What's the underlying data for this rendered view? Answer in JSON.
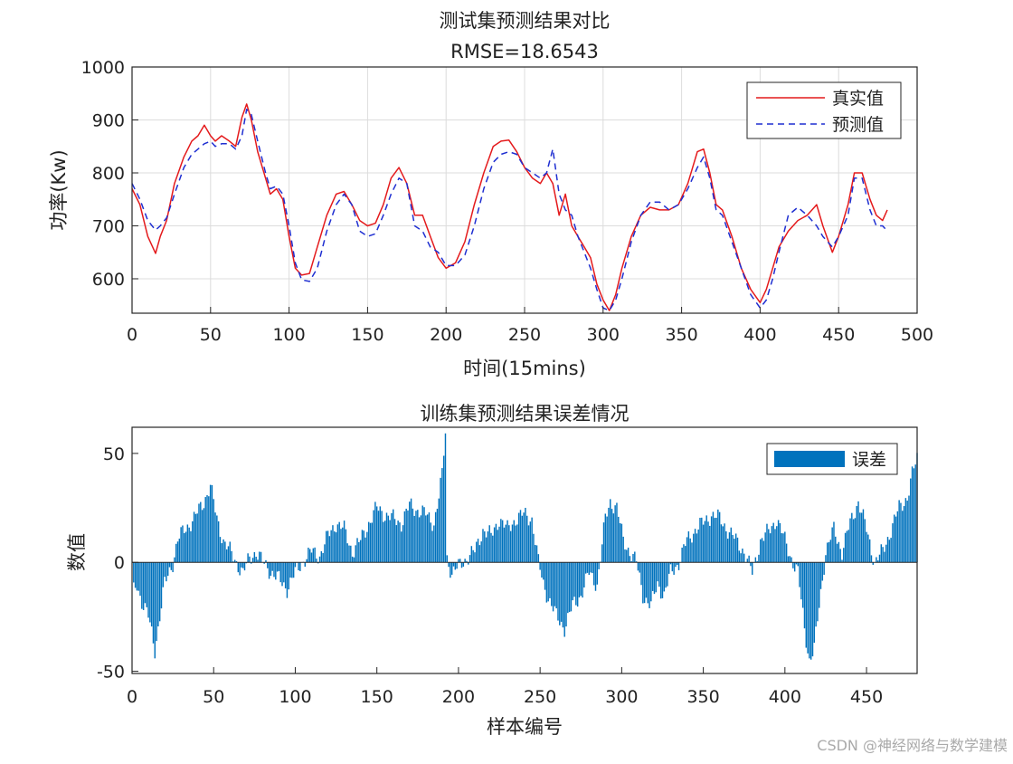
{
  "chart_data": [
    {
      "type": "line",
      "title": "测试集预测结果对比",
      "subtitle": "RMSE=18.6543",
      "xlabel": "时间(15mins)",
      "ylabel": "功率(Kw)",
      "xlim": [
        0,
        500
      ],
      "ylim": [
        535,
        1000
      ],
      "xticks": [
        0,
        50,
        100,
        150,
        200,
        250,
        300,
        350,
        400,
        450,
        500
      ],
      "yticks": [
        600,
        700,
        800,
        900,
        1000
      ],
      "grid": true,
      "legend_position": "top-right",
      "series": [
        {
          "name": "真实值",
          "color": "#e41a1c",
          "style": "solid",
          "x": [
            0,
            5,
            10,
            15,
            18,
            22,
            27,
            33,
            38,
            42,
            46,
            50,
            53,
            57,
            62,
            66,
            70,
            73,
            76,
            80,
            85,
            88,
            92,
            96,
            100,
            104,
            108,
            113,
            118,
            124,
            130,
            135,
            140,
            145,
            150,
            155,
            160,
            165,
            170,
            175,
            180,
            185,
            190,
            195,
            200,
            206,
            212,
            218,
            224,
            230,
            235,
            240,
            245,
            250,
            255,
            260,
            264,
            268,
            272,
            276,
            280,
            284,
            288,
            292,
            296,
            300,
            304,
            308,
            312,
            318,
            324,
            330,
            336,
            342,
            348,
            354,
            360,
            364,
            368,
            372,
            376,
            382,
            388,
            394,
            400,
            404,
            408,
            412,
            418,
            424,
            430,
            436,
            440,
            446,
            450,
            456,
            460,
            465,
            470,
            474,
            478,
            481
          ],
          "y": [
            770,
            740,
            680,
            648,
            680,
            710,
            780,
            830,
            860,
            870,
            890,
            870,
            860,
            870,
            860,
            850,
            905,
            930,
            900,
            840,
            790,
            760,
            770,
            750,
            680,
            620,
            607,
            610,
            660,
            720,
            760,
            765,
            740,
            710,
            700,
            705,
            740,
            790,
            810,
            780,
            720,
            720,
            680,
            640,
            620,
            630,
            670,
            740,
            800,
            850,
            860,
            862,
            840,
            810,
            790,
            780,
            800,
            780,
            720,
            760,
            700,
            680,
            660,
            640,
            590,
            560,
            540,
            570,
            620,
            680,
            720,
            735,
            730,
            730,
            740,
            780,
            840,
            845,
            800,
            740,
            730,
            680,
            620,
            580,
            555,
            580,
            620,
            660,
            690,
            710,
            720,
            740,
            700,
            650,
            680,
            740,
            800,
            800,
            750,
            720,
            710,
            730
          ]
        },
        {
          "name": "预测值",
          "color": "#1f2fd1",
          "style": "dashed",
          "x": [
            0,
            5,
            10,
            15,
            18,
            22,
            27,
            33,
            38,
            42,
            46,
            50,
            53,
            57,
            62,
            66,
            70,
            73,
            76,
            80,
            85,
            88,
            92,
            96,
            100,
            104,
            108,
            113,
            118,
            124,
            130,
            135,
            140,
            145,
            150,
            155,
            160,
            165,
            170,
            175,
            180,
            185,
            190,
            195,
            200,
            206,
            212,
            218,
            224,
            230,
            235,
            240,
            245,
            250,
            255,
            260,
            264,
            268,
            272,
            276,
            280,
            284,
            288,
            292,
            296,
            300,
            304,
            308,
            312,
            318,
            324,
            330,
            336,
            342,
            348,
            354,
            360,
            364,
            368,
            372,
            376,
            382,
            388,
            394,
            400,
            404,
            408,
            412,
            418,
            424,
            430,
            436,
            440,
            446,
            450,
            456,
            460,
            465,
            470,
            474,
            478,
            481
          ],
          "y": [
            780,
            750,
            710,
            692,
            700,
            715,
            760,
            810,
            835,
            845,
            855,
            860,
            850,
            855,
            855,
            845,
            870,
            920,
            910,
            860,
            800,
            770,
            775,
            760,
            700,
            630,
            598,
            595,
            620,
            690,
            740,
            760,
            740,
            690,
            680,
            685,
            720,
            760,
            790,
            780,
            700,
            690,
            660,
            650,
            625,
            625,
            645,
            700,
            770,
            820,
            835,
            840,
            835,
            810,
            800,
            790,
            800,
            845,
            760,
            730,
            720,
            680,
            650,
            620,
            580,
            545,
            540,
            560,
            600,
            670,
            720,
            745,
            745,
            730,
            740,
            770,
            810,
            830,
            790,
            730,
            720,
            670,
            620,
            570,
            545,
            560,
            600,
            650,
            720,
            735,
            720,
            700,
            680,
            660,
            680,
            720,
            790,
            790,
            730,
            700,
            700,
            690
          ]
        }
      ]
    },
    {
      "type": "bar",
      "title": "训练集预测结果误差情况",
      "xlabel": "样本编号",
      "ylabel": "数值",
      "xlim": [
        0,
        481
      ],
      "ylim": [
        -51,
        62
      ],
      "xticks": [
        0,
        50,
        100,
        150,
        200,
        250,
        300,
        350,
        400,
        450
      ],
      "yticks": [
        -50,
        0,
        50
      ],
      "grid": false,
      "legend_position": "top-right",
      "series": [
        {
          "name": "误差",
          "color": "#0072bd",
          "anchors_x": [
            0,
            3,
            6,
            10,
            14,
            16,
            20,
            25,
            28,
            32,
            38,
            44,
            48,
            52,
            56,
            60,
            64,
            68,
            72,
            76,
            80,
            86,
            90,
            95,
            100,
            104,
            110,
            115,
            120,
            125,
            130,
            135,
            140,
            145,
            150,
            155,
            160,
            165,
            170,
            175,
            180,
            185,
            188,
            190,
            192,
            193,
            196,
            200,
            205,
            210,
            215,
            220,
            225,
            230,
            235,
            240,
            245,
            249,
            252,
            256,
            260,
            265,
            270,
            275,
            280,
            285,
            290,
            293,
            297,
            301,
            305,
            309,
            313,
            318,
            322,
            326,
            330,
            335,
            340,
            345,
            350,
            355,
            360,
            365,
            370,
            375,
            380,
            385,
            390,
            395,
            400,
            405,
            408,
            412,
            415,
            418,
            421,
            425,
            430,
            435,
            440,
            445,
            450,
            455,
            460,
            465,
            470,
            475,
            478,
            481
          ],
          "anchors_y": [
            -15,
            -10,
            -18,
            -25,
            -40,
            -30,
            -10,
            0,
            10,
            15,
            20,
            28,
            35,
            20,
            10,
            5,
            0,
            -5,
            2,
            5,
            0,
            -5,
            -8,
            -12,
            -5,
            0,
            5,
            3,
            12,
            18,
            15,
            5,
            10,
            18,
            25,
            22,
            20,
            18,
            26,
            24,
            22,
            18,
            30,
            40,
            60,
            2,
            -5,
            -2,
            2,
            5,
            15,
            12,
            20,
            15,
            20,
            22,
            20,
            0,
            -10,
            -18,
            -25,
            -30,
            -20,
            -15,
            -5,
            -10,
            20,
            28,
            25,
            10,
            5,
            0,
            -15,
            -20,
            -10,
            -15,
            -5,
            0,
            10,
            15,
            18,
            22,
            20,
            15,
            10,
            5,
            -5,
            10,
            14,
            20,
            10,
            0,
            -5,
            -30,
            -45,
            -40,
            -20,
            5,
            15,
            5,
            18,
            28,
            15,
            0,
            5,
            15,
            25,
            30,
            40,
            48
          ]
        }
      ]
    }
  ],
  "watermark": "CSDN @神经网络与数学建模"
}
